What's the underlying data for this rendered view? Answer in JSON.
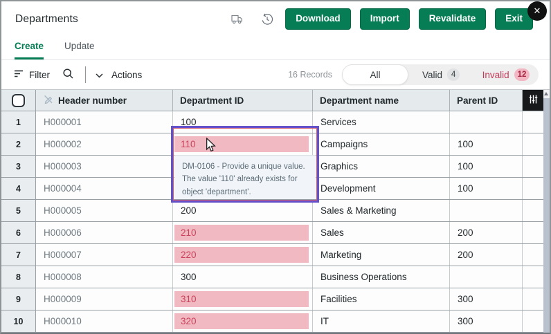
{
  "window": {
    "title": "Departments",
    "close_glyph": "✕"
  },
  "header": {
    "buttons": [
      {
        "label": "Download"
      },
      {
        "label": "Import"
      },
      {
        "label": "Revalidate"
      },
      {
        "label": "Exit"
      }
    ]
  },
  "tabs": [
    {
      "label": "Create",
      "active": true
    },
    {
      "label": "Update",
      "active": false
    }
  ],
  "toolbar": {
    "filter_label": "Filter",
    "actions_label": "Actions",
    "records_text": "16 Records",
    "segments": [
      {
        "label": "All",
        "selected": true
      },
      {
        "label": "Valid",
        "count": "4"
      },
      {
        "label": "Invalid",
        "count": "12"
      }
    ]
  },
  "table": {
    "columns": [
      "Header number",
      "Department ID",
      "Department name",
      "Parent ID"
    ],
    "rows": [
      {
        "num": "1",
        "header_number": "H000001",
        "department_id": "100",
        "department_name": "Services",
        "parent_id": "",
        "invalid": false
      },
      {
        "num": "2",
        "header_number": "H000002",
        "department_id": "110",
        "department_name": "Campaigns",
        "parent_id": "100",
        "invalid": true,
        "selected": true
      },
      {
        "num": "3",
        "header_number": "H000003",
        "department_id": "",
        "department_name": "Graphics",
        "parent_id": "100",
        "invalid": false
      },
      {
        "num": "4",
        "header_number": "H000004",
        "department_id": "",
        "department_name": "Development",
        "parent_id": "100",
        "invalid": false
      },
      {
        "num": "5",
        "header_number": "H000005",
        "department_id": "200",
        "department_name": "Sales & Marketing",
        "parent_id": "",
        "invalid": false
      },
      {
        "num": "6",
        "header_number": "H000006",
        "department_id": "210",
        "department_name": "Sales",
        "parent_id": "200",
        "invalid": true
      },
      {
        "num": "7",
        "header_number": "H000007",
        "department_id": "220",
        "department_name": "Marketing",
        "parent_id": "200",
        "invalid": true
      },
      {
        "num": "8",
        "header_number": "H000008",
        "department_id": "300",
        "department_name": "Business Operations",
        "parent_id": "",
        "invalid": false
      },
      {
        "num": "9",
        "header_number": "H000009",
        "department_id": "310",
        "department_name": "Facilities",
        "parent_id": "300",
        "invalid": true
      },
      {
        "num": "10",
        "header_number": "H000010",
        "department_id": "320",
        "department_name": "IT",
        "parent_id": "300",
        "invalid": true
      }
    ]
  },
  "error_popup": {
    "message": "DM-0106 - Provide a unique value. The value '110' already exists for object 'department'."
  },
  "icons": {
    "title_bar": [
      "truck-icon",
      "history-icon"
    ],
    "toolbar": [
      "filter-icon",
      "search-icon",
      "chevron-down-icon"
    ],
    "table": [
      "edit-disabled-icon",
      "column-settings-icon"
    ]
  },
  "colors": {
    "accent_green": "#077d55",
    "invalid_cell_bg": "#f1bac2",
    "invalid_text": "#c9415a",
    "selection_purple": "#6450c8",
    "invalid_badge_bg": "#f2b7c3",
    "table_header_bg": "#e5eaec"
  }
}
